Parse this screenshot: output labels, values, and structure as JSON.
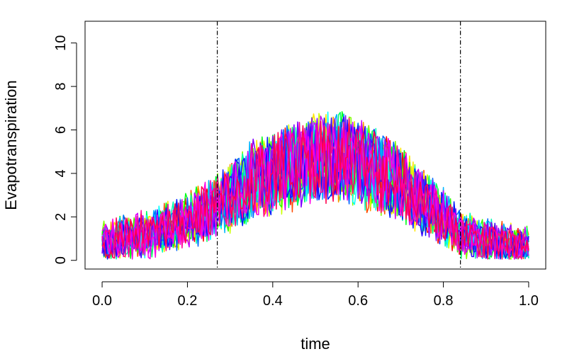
{
  "chart_data": {
    "type": "line",
    "title": "",
    "xlabel": "time",
    "ylabel": "Evapotranspiration",
    "xlim": [
      -0.04,
      1.04
    ],
    "ylim": [
      -0.4,
      11.0
    ],
    "x_ticks": [
      0.0,
      0.2,
      0.4,
      0.6,
      0.8,
      1.0
    ],
    "x_tick_labels": [
      "0.0",
      "0.2",
      "0.4",
      "0.6",
      "0.8",
      "1.0"
    ],
    "y_ticks": [
      0,
      2,
      4,
      6,
      8,
      10
    ],
    "y_tick_labels": [
      "0",
      "2",
      "4",
      "6",
      "8",
      "10"
    ],
    "grid": false,
    "legend": "none",
    "vertical_reference_lines": [
      {
        "x": 0.27,
        "style": "dash-dot",
        "color": "#000000"
      },
      {
        "x": 0.84,
        "style": "dash-dot",
        "color": "#000000"
      }
    ],
    "cap_value": 9.0,
    "noise_amplitude": 2.2,
    "series_count": 20,
    "series_colors": [
      "#ff0000",
      "#ff4d00",
      "#ff9900",
      "#ffe600",
      "#ccff00",
      "#80ff00",
      "#33ff00",
      "#00ff1a",
      "#00ff66",
      "#00ffb3",
      "#00ffff",
      "#00b3ff",
      "#0066ff",
      "#001aff",
      "#3300ff",
      "#8000ff",
      "#cc00ff",
      "#ff00e6",
      "#ff0099",
      "#ff004d"
    ],
    "mean_curve": {
      "x": [
        0.0,
        0.1,
        0.2,
        0.27,
        0.35,
        0.45,
        0.5,
        0.55,
        0.6,
        0.7,
        0.8,
        0.84,
        0.9,
        1.0
      ],
      "y": [
        0.8,
        1.2,
        1.8,
        2.5,
        3.6,
        4.4,
        4.7,
        4.8,
        4.6,
        3.5,
        2.0,
        1.2,
        0.9,
        0.6
      ]
    }
  }
}
